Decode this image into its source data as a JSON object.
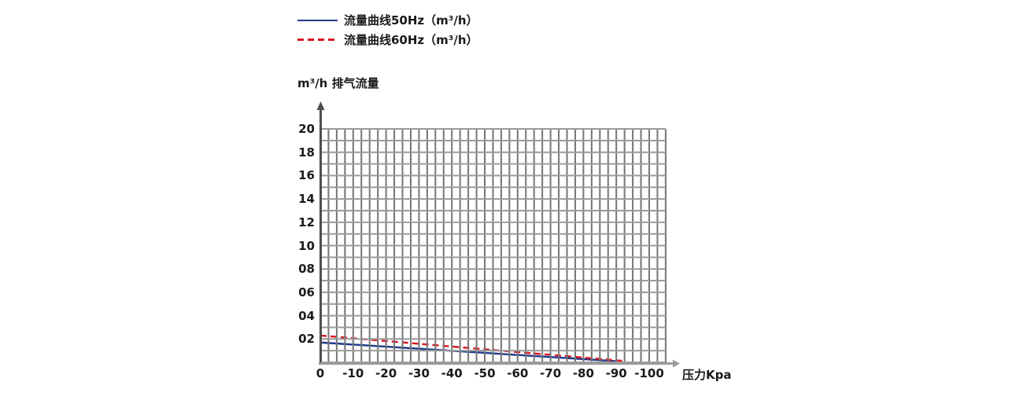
{
  "legend": {
    "items": [
      {
        "label": "流量曲线50Hz（m³/h）",
        "color": "#1f3b8c",
        "line_style": "solid"
      },
      {
        "label": "流量曲线60Hz（m³/h）",
        "color": "#dd1420",
        "line_style": "dashed"
      }
    ]
  },
  "chart_data": {
    "type": "line",
    "title": "",
    "xlabel": "压力Kpa",
    "ylabel": "m³/h 排气流量",
    "xlim": [
      0,
      -105
    ],
    "ylim": [
      0,
      20
    ],
    "grid": true,
    "grid_x_step": 2.5,
    "grid_y_step": 1,
    "legend_position": "top-left",
    "x_tick_labels": [
      "0",
      "-10",
      "-20",
      "-30",
      "-40",
      "-50",
      "-60",
      "-70",
      "-80",
      "-90",
      "-100"
    ],
    "y_tick_labels": [
      "02",
      "04",
      "06",
      "08",
      "10",
      "12",
      "14",
      "16",
      "18",
      "20"
    ],
    "series": [
      {
        "name": "流量曲线50Hz（m³/h）",
        "color": "#1f3b8c",
        "line_style": "solid",
        "points": [
          [
            0,
            1.7
          ],
          [
            -90,
            0.1
          ]
        ]
      },
      {
        "name": "流量曲线60Hz（m³/h）",
        "color": "#dd1420",
        "line_style": "dashed",
        "points": [
          [
            0,
            2.3
          ],
          [
            -93,
            0.1
          ]
        ]
      }
    ]
  },
  "colors": {
    "grid_vertical": "#757575",
    "grid_horizontal": "#9b9b9b",
    "axis_y": "#4f4f4f",
    "axis_x": "#9a9a9a",
    "text": "#1a1a1a",
    "background": "#ffffff"
  }
}
